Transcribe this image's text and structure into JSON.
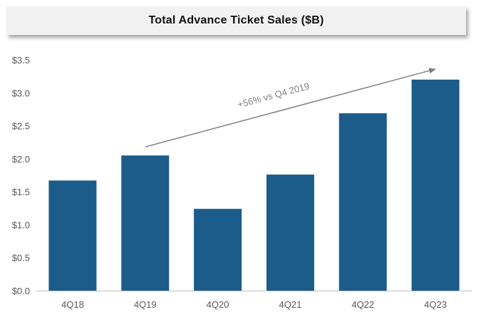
{
  "chart_data": {
    "type": "bar",
    "title": "Total Advance Ticket Sales ($B)",
    "categories": [
      "4Q18",
      "4Q19",
      "4Q20",
      "4Q21",
      "4Q22",
      "4Q23"
    ],
    "values": [
      1.67,
      2.05,
      1.24,
      1.76,
      2.69,
      3.2
    ],
    "ylim": [
      0,
      3.5
    ],
    "yticks": [
      {
        "value": 0.0,
        "label": "$0.0"
      },
      {
        "value": 0.5,
        "label": "$0.5"
      },
      {
        "value": 1.0,
        "label": "$1.0"
      },
      {
        "value": 1.5,
        "label": "$1.5"
      },
      {
        "value": 2.0,
        "label": "$2.0"
      },
      {
        "value": 2.5,
        "label": "$2.5"
      },
      {
        "value": 3.0,
        "label": "$3.0"
      },
      {
        "value": 3.5,
        "label": "$3.5"
      }
    ],
    "grid": false,
    "bar_color": "#1b5c8a",
    "axis_color": "#bfbfbf",
    "annotation": {
      "text": "+56% vs Q4 2019",
      "from": {
        "category": "4Q19",
        "value": 2.18
      },
      "to": {
        "category": "4Q23",
        "value": 3.36
      },
      "color": "#7f7f7f"
    }
  }
}
